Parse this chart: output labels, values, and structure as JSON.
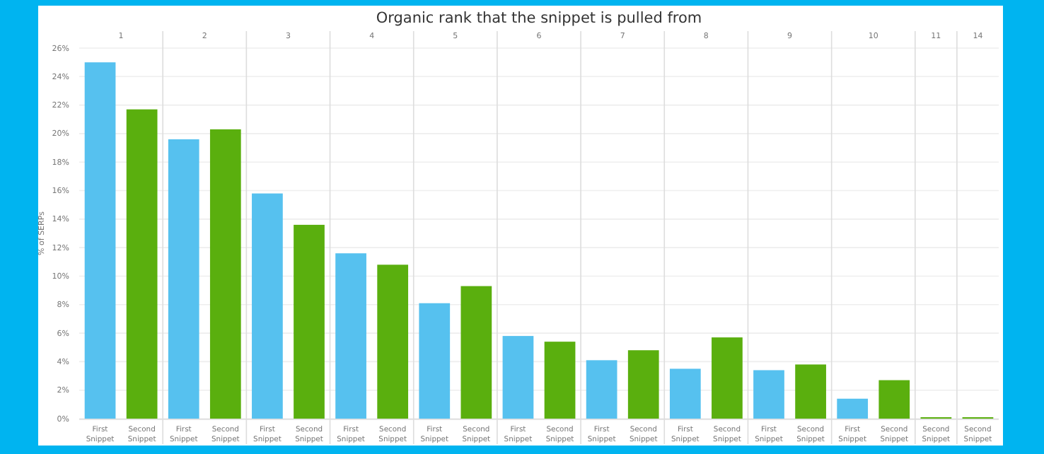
{
  "chart_data": {
    "type": "bar",
    "title": "Organic rank that the snippet is pulled from",
    "ylabel": "% of SERPs",
    "categories": [
      "1",
      "2",
      "3",
      "4",
      "5",
      "6",
      "7",
      "8",
      "9",
      "10",
      "11",
      "14"
    ],
    "series": [
      {
        "name": "First Snippet",
        "color": "#56c1ef",
        "values": [
          25.0,
          19.6,
          15.8,
          11.6,
          8.1,
          5.8,
          4.1,
          3.5,
          3.4,
          1.4,
          null,
          null
        ]
      },
      {
        "name": "Second Snippet",
        "color": "#5aaf0e",
        "values": [
          21.7,
          20.3,
          13.6,
          10.8,
          9.3,
          5.4,
          4.8,
          5.7,
          3.8,
          2.7,
          0.1,
          0.1
        ]
      }
    ],
    "ylim": [
      0,
      26
    ],
    "yticks": [
      {
        "value": 0,
        "label": "0%"
      },
      {
        "value": 2,
        "label": "2%"
      },
      {
        "value": 4,
        "label": "4%"
      },
      {
        "value": 6,
        "label": "6%"
      },
      {
        "value": 8,
        "label": "8%"
      },
      {
        "value": 10,
        "label": "10%"
      },
      {
        "value": 12,
        "label": "12%"
      },
      {
        "value": 14,
        "label": "14%"
      },
      {
        "value": 16,
        "label": "16%"
      },
      {
        "value": 18,
        "label": "18%"
      },
      {
        "value": 20,
        "label": "20%"
      },
      {
        "value": 22,
        "label": "22%"
      },
      {
        "value": 24,
        "label": "24%"
      },
      {
        "value": 26,
        "label": "26%"
      }
    ],
    "grid": "y"
  }
}
